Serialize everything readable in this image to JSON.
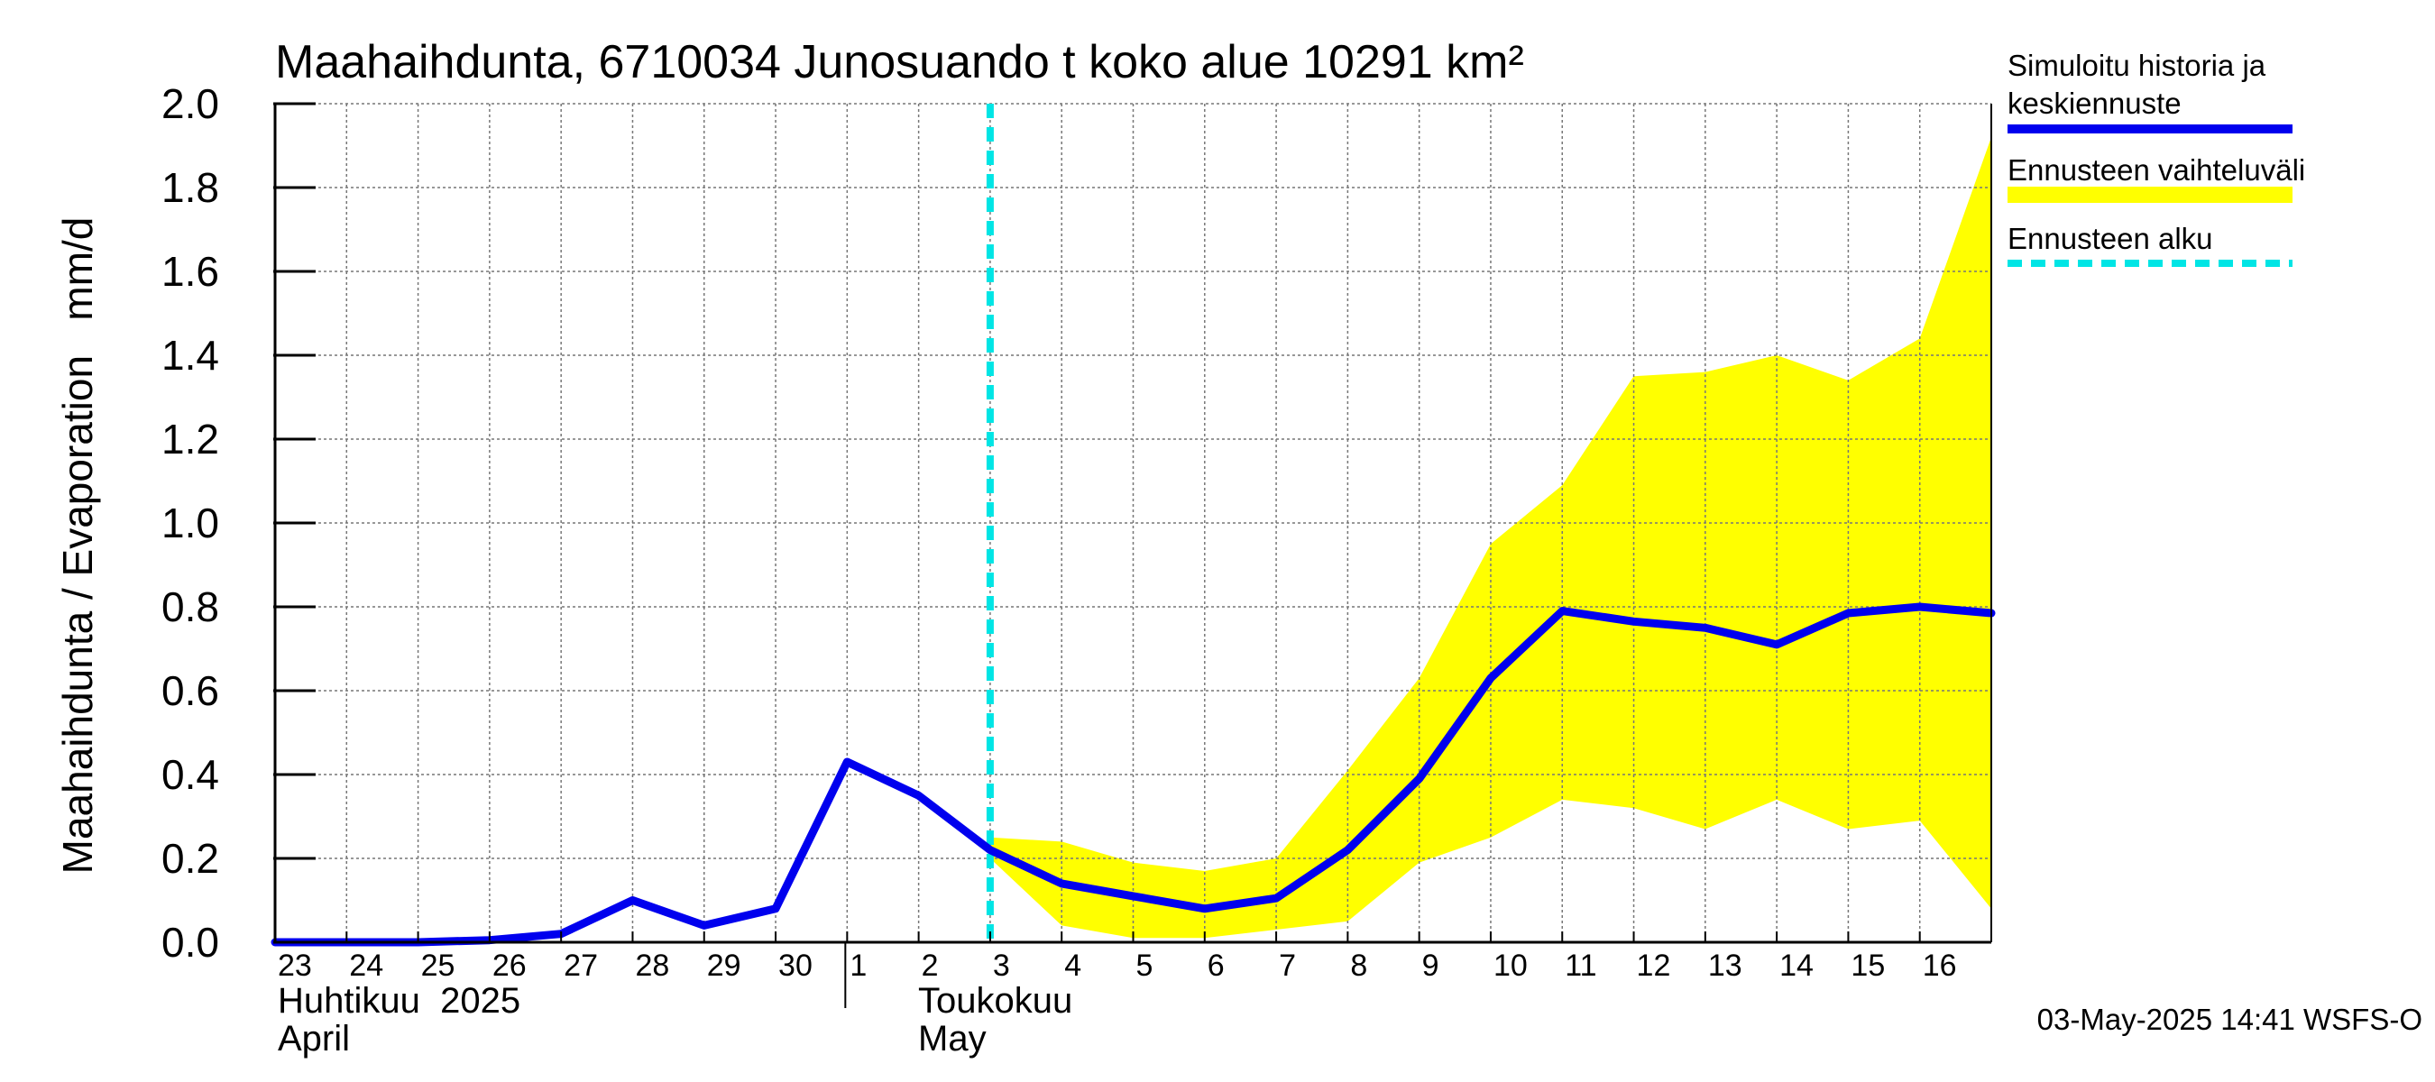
{
  "chart_data": {
    "type": "line",
    "title": "Maahaihdunta, 6710034 Junosuando t koko alue 10291 km²",
    "ylabel": "Maahaihdunta / Evaporation   mm/d",
    "ylim": [
      0,
      2.0
    ],
    "yticks": [
      "0.0",
      "0.2",
      "0.4",
      "0.6",
      "0.8",
      "1.0",
      "1.2",
      "1.4",
      "1.6",
      "1.8",
      "2.0"
    ],
    "grid": true,
    "x_start_day_labels": [
      "23",
      "24",
      "25",
      "26",
      "27",
      "28",
      "29",
      "30",
      "1",
      "2",
      "3",
      "4",
      "5",
      "6",
      "7",
      "8",
      "9",
      "10",
      "11",
      "12",
      "13",
      "14",
      "15",
      "16"
    ],
    "months": [
      {
        "line1": "Huhtikuu  2025",
        "line2": "April",
        "start_index": 0
      },
      {
        "line1": "Toukokuu",
        "line2": "May",
        "start_index": 8
      }
    ],
    "forecast_start_x": "2025-05-03",
    "series": [
      {
        "name": "Simuloitu historia ja keskiennuste",
        "color": "#0000ee",
        "points": [
          [
            "2025-04-23",
            0.0
          ],
          [
            "2025-04-24",
            0.0
          ],
          [
            "2025-04-25",
            0.0
          ],
          [
            "2025-04-26",
            0.005
          ],
          [
            "2025-04-27",
            0.02
          ],
          [
            "2025-04-28",
            0.1
          ],
          [
            "2025-04-29",
            0.04
          ],
          [
            "2025-04-30",
            0.08
          ],
          [
            "2025-05-01",
            0.43
          ],
          [
            "2025-05-02",
            0.35
          ],
          [
            "2025-05-03",
            0.22
          ],
          [
            "2025-05-04",
            0.14
          ],
          [
            "2025-05-05",
            0.11
          ],
          [
            "2025-05-06",
            0.08
          ],
          [
            "2025-05-07",
            0.105
          ],
          [
            "2025-05-08",
            0.22
          ],
          [
            "2025-05-09",
            0.39
          ],
          [
            "2025-05-10",
            0.63
          ],
          [
            "2025-05-11",
            0.79
          ],
          [
            "2025-05-12",
            0.765
          ],
          [
            "2025-05-13",
            0.75
          ],
          [
            "2025-05-14",
            0.71
          ],
          [
            "2025-05-15",
            0.785
          ],
          [
            "2025-05-16",
            0.8
          ],
          [
            "2025-05-17",
            0.785
          ]
        ]
      },
      {
        "name": "Ennusteen vaihteluväli",
        "color": "#ffff00",
        "band": [
          [
            "2025-05-03",
            0.2,
            0.25
          ],
          [
            "2025-05-04",
            0.04,
            0.24
          ],
          [
            "2025-05-05",
            0.01,
            0.19
          ],
          [
            "2025-05-06",
            0.01,
            0.17
          ],
          [
            "2025-05-07",
            0.03,
            0.2
          ],
          [
            "2025-05-08",
            0.05,
            0.41
          ],
          [
            "2025-05-09",
            0.19,
            0.63
          ],
          [
            "2025-05-10",
            0.25,
            0.95
          ],
          [
            "2025-05-11",
            0.34,
            1.09
          ],
          [
            "2025-05-12",
            0.32,
            1.35
          ],
          [
            "2025-05-13",
            0.27,
            1.36
          ],
          [
            "2025-05-14",
            0.34,
            1.4
          ],
          [
            "2025-05-15",
            0.27,
            1.34
          ],
          [
            "2025-05-16",
            0.29,
            1.44
          ],
          [
            "2025-05-17",
            0.08,
            1.92
          ]
        ]
      },
      {
        "name": "Ennusteen alku",
        "color": "#00e5e5",
        "dashed": true
      }
    ],
    "legend": {
      "placement": "right",
      "entries": [
        {
          "line1": "Simuloitu historia ja",
          "line2": "keskiennuste",
          "color": "#0000ee",
          "style": "line"
        },
        {
          "line1": "Ennusteen vaihteluväli",
          "line2": "",
          "color": "#ffff00",
          "style": "band"
        },
        {
          "line1": "Ennusteen alku",
          "line2": "",
          "color": "#00e5e5",
          "style": "dashed"
        }
      ]
    },
    "footer": "03-May-2025 14:41 WSFS-O"
  }
}
